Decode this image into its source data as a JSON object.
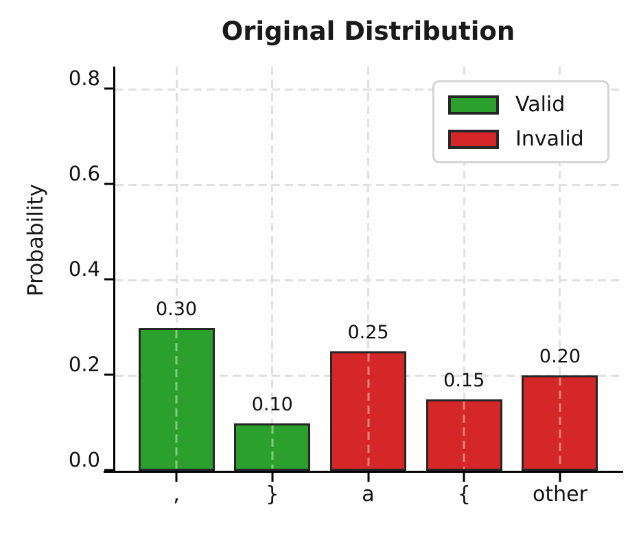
{
  "chart_data": {
    "type": "bar",
    "title": "Original Distribution",
    "xlabel": "",
    "ylabel": "Probability",
    "categories": [
      ",",
      "}",
      "a",
      "{",
      "other"
    ],
    "values": [
      0.3,
      0.1,
      0.25,
      0.15,
      0.2
    ],
    "bar_value_labels": [
      "0.30",
      "0.10",
      "0.25",
      "0.15",
      "0.20"
    ],
    "bar_series": [
      "valid",
      "valid",
      "invalid",
      "invalid",
      "invalid"
    ],
    "y_ticks": [
      {
        "value": 0.0,
        "label": "0.0"
      },
      {
        "value": 0.2,
        "label": "0.2"
      },
      {
        "value": 0.4,
        "label": "0.4"
      },
      {
        "value": 0.6,
        "label": "0.6"
      },
      {
        "value": 0.8,
        "label": "0.8"
      }
    ],
    "ylim": [
      0,
      0.848
    ],
    "grid": true,
    "grid_style": "dashed",
    "legend": {
      "position": "upper right",
      "entries": [
        {
          "label": "Valid",
          "series": "valid",
          "color": "#2ca02c"
        },
        {
          "label": "Invalid",
          "series": "invalid",
          "color": "#d62728"
        }
      ]
    },
    "colors": {
      "valid": "#2ca02c",
      "invalid": "#d62728",
      "bar_edge": "#262626",
      "grid": "#e0e0e0",
      "axis": "#000000",
      "text": "#111111",
      "legend_border": "#d4d4d4"
    }
  }
}
